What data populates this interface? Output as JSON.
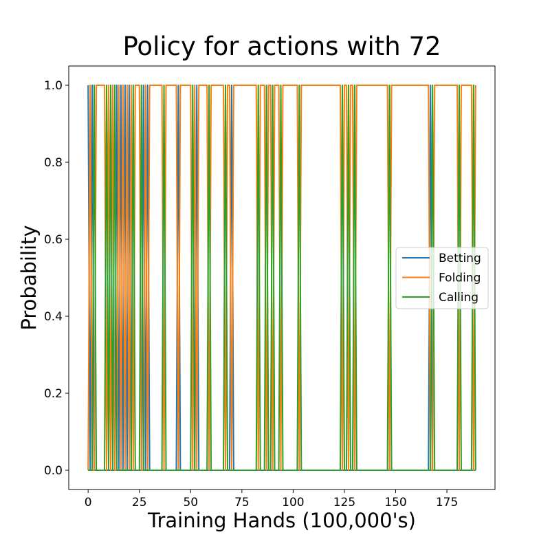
{
  "chart_data": {
    "type": "line",
    "title": "Policy for actions with 72",
    "xlabel": "Training Hands (100,000's)",
    "ylabel": "Probability",
    "xlim": [
      -9.45,
      198.45
    ],
    "ylim": [
      -0.05,
      1.05
    ],
    "xticks": [
      0,
      25,
      50,
      75,
      100,
      125,
      150,
      175
    ],
    "xtick_labels": [
      "0",
      "25",
      "50",
      "75",
      "100",
      "125",
      "150",
      "175"
    ],
    "yticks": [
      0.0,
      0.2,
      0.4,
      0.6,
      0.8,
      1.0
    ],
    "ytick_labels": [
      "0.0",
      "0.2",
      "0.4",
      "0.6",
      "0.8",
      "1.0"
    ],
    "grid": false,
    "legend_position": "center-right",
    "x": [
      0,
      1,
      2,
      3,
      4,
      5,
      6,
      7,
      8,
      9,
      10,
      11,
      12,
      13,
      14,
      15,
      16,
      17,
      18,
      19,
      20,
      21,
      22,
      23,
      24,
      25,
      26,
      27,
      28,
      29,
      30,
      31,
      32,
      33,
      34,
      35,
      36,
      37,
      38,
      39,
      40,
      41,
      42,
      43,
      44,
      45,
      46,
      47,
      48,
      49,
      50,
      51,
      52,
      53,
      54,
      55,
      56,
      57,
      58,
      59,
      60,
      61,
      62,
      63,
      64,
      65,
      66,
      67,
      68,
      69,
      70,
      71,
      72,
      73,
      74,
      75,
      76,
      77,
      78,
      79,
      80,
      81,
      82,
      83,
      84,
      85,
      86,
      87,
      88,
      89,
      90,
      91,
      92,
      93,
      94,
      95,
      96,
      97,
      98,
      99,
      100,
      101,
      102,
      103,
      104,
      105,
      106,
      107,
      108,
      109,
      110,
      111,
      112,
      113,
      114,
      115,
      116,
      117,
      118,
      119,
      120,
      121,
      122,
      123,
      124,
      125,
      126,
      127,
      128,
      129,
      130,
      131,
      132,
      133,
      134,
      135,
      136,
      137,
      138,
      139,
      140,
      141,
      142,
      143,
      144,
      145,
      146,
      147,
      148,
      149,
      150,
      151,
      152,
      153,
      154,
      155,
      156,
      157,
      158,
      159,
      160,
      161,
      162,
      163,
      164,
      165,
      166,
      167,
      168,
      169,
      170,
      171,
      172,
      173,
      174,
      175,
      176,
      177,
      178,
      179,
      180,
      181,
      182,
      183,
      184,
      185,
      186,
      187,
      188,
      189
    ],
    "series": [
      {
        "name": "Betting",
        "color": "#1f77b4",
        "values": [
          1,
          0,
          1,
          0,
          0,
          0,
          0,
          0,
          0,
          0,
          0,
          0,
          0,
          0,
          1,
          0,
          1,
          0,
          1,
          0,
          1,
          0,
          0,
          0,
          0,
          0,
          0,
          1,
          0,
          1,
          0,
          0,
          0,
          0,
          0,
          0,
          0,
          0,
          0,
          0,
          0,
          0,
          0,
          0,
          1,
          0,
          0,
          0,
          0,
          0,
          0,
          0,
          0,
          1,
          0,
          0,
          0,
          0,
          0,
          0,
          0,
          0,
          0,
          0,
          0,
          0,
          0,
          0,
          0,
          0,
          1,
          0,
          0,
          0,
          0,
          0,
          0,
          0,
          0,
          0,
          0,
          0,
          0,
          0,
          0,
          0,
          0,
          0,
          0,
          0,
          0,
          0,
          0,
          0,
          0,
          0,
          0,
          0,
          0,
          0,
          0,
          0,
          0,
          0,
          0,
          0,
          0,
          0,
          0,
          0,
          0,
          0,
          0,
          0,
          0,
          0,
          0,
          0,
          0,
          0,
          0,
          0,
          0,
          0,
          0,
          0,
          0,
          0,
          0,
          0,
          0,
          0,
          0,
          0,
          0,
          0,
          0,
          0,
          0,
          0,
          0,
          0,
          0,
          0,
          0,
          0,
          0,
          0,
          0,
          0,
          0,
          0,
          0,
          0,
          0,
          0,
          0,
          0,
          0,
          0,
          0,
          0,
          0,
          0,
          0,
          0,
          0,
          1,
          0,
          0,
          0,
          0,
          0,
          0,
          0,
          0,
          0,
          0,
          0,
          0,
          0,
          0,
          0,
          0,
          0,
          0,
          0,
          0,
          0,
          0
        ]
      },
      {
        "name": "Folding",
        "color": "#ff7f0e",
        "values": [
          0,
          1,
          0,
          0,
          1,
          1,
          1,
          1,
          1,
          0,
          1,
          0,
          1,
          0,
          0,
          1,
          0,
          1,
          0,
          1,
          0,
          1,
          0,
          1,
          1,
          1,
          0,
          0,
          1,
          0,
          1,
          1,
          1,
          1,
          1,
          1,
          1,
          0,
          1,
          1,
          1,
          1,
          1,
          1,
          0,
          1,
          1,
          1,
          1,
          1,
          1,
          0,
          1,
          0,
          1,
          1,
          1,
          1,
          1,
          0,
          1,
          1,
          1,
          1,
          1,
          1,
          1,
          0,
          1,
          1,
          0,
          1,
          1,
          1,
          1,
          1,
          1,
          1,
          1,
          1,
          1,
          1,
          1,
          0,
          1,
          1,
          1,
          0,
          1,
          1,
          0,
          1,
          1,
          1,
          0,
          1,
          1,
          1,
          1,
          1,
          1,
          1,
          1,
          0,
          1,
          1,
          1,
          1,
          1,
          1,
          1,
          1,
          1,
          1,
          1,
          1,
          1,
          1,
          1,
          1,
          1,
          1,
          1,
          1,
          0,
          1,
          1,
          0,
          1,
          1,
          0,
          1,
          1,
          1,
          1,
          1,
          1,
          1,
          1,
          1,
          1,
          1,
          1,
          1,
          1,
          1,
          1,
          0,
          1,
          1,
          1,
          1,
          1,
          1,
          1,
          1,
          1,
          1,
          1,
          1,
          1,
          1,
          1,
          1,
          1,
          1,
          1,
          0,
          0,
          1,
          1,
          1,
          1,
          1,
          1,
          1,
          1,
          1,
          1,
          1,
          1,
          0,
          1,
          1,
          1,
          1,
          1,
          1,
          0,
          1
        ]
      },
      {
        "name": "Calling",
        "color": "#2ca02c",
        "values": [
          0,
          0,
          0,
          1,
          0,
          0,
          0,
          0,
          0,
          1,
          0,
          1,
          0,
          1,
          0,
          0,
          0,
          0,
          0,
          0,
          0,
          0,
          1,
          0,
          0,
          0,
          1,
          0,
          0,
          0,
          0,
          0,
          0,
          0,
          0,
          0,
          0,
          1,
          0,
          0,
          0,
          0,
          0,
          0,
          0,
          0,
          0,
          0,
          0,
          0,
          0,
          1,
          0,
          0,
          0,
          0,
          0,
          0,
          0,
          1,
          0,
          0,
          0,
          0,
          0,
          0,
          0,
          1,
          0,
          0,
          0,
          0,
          0,
          0,
          0,
          0,
          0,
          0,
          0,
          0,
          0,
          0,
          0,
          1,
          0,
          0,
          0,
          1,
          0,
          0,
          1,
          0,
          0,
          0,
          1,
          0,
          0,
          0,
          0,
          0,
          0,
          0,
          0,
          1,
          0,
          0,
          0,
          0,
          0,
          0,
          0,
          0,
          0,
          0,
          0,
          0,
          0,
          0,
          0,
          0,
          0,
          0,
          0,
          0,
          1,
          0,
          0,
          1,
          0,
          0,
          1,
          0,
          0,
          0,
          0,
          0,
          0,
          0,
          0,
          0,
          0,
          0,
          0,
          0,
          0,
          0,
          0,
          1,
          0,
          0,
          0,
          0,
          0,
          0,
          0,
          0,
          0,
          0,
          0,
          0,
          0,
          0,
          0,
          0,
          0,
          0,
          0,
          0,
          1,
          0,
          0,
          0,
          0,
          0,
          0,
          0,
          0,
          0,
          0,
          0,
          0,
          1,
          0,
          0,
          0,
          0,
          0,
          0,
          1,
          0
        ]
      }
    ]
  }
}
